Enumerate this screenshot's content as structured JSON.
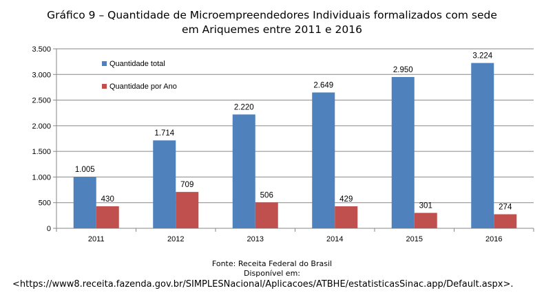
{
  "chart_data": {
    "type": "bar",
    "title_line1": "Gráfico 9 – Quantidade de Microempreendedores Individuais formalizados com sede",
    "title_line2": "em Ariquemes entre 2011 e 2016",
    "categories": [
      "2011",
      "2012",
      "2013",
      "2014",
      "2015",
      "2016"
    ],
    "series": [
      {
        "name": "Quantidade total",
        "color": "#4F81BD",
        "values": [
          1005,
          1714,
          2220,
          2649,
          2950,
          3224
        ],
        "labels": [
          "1.005",
          "1.714",
          "2.220",
          "2.649",
          "2.950",
          "3.224"
        ]
      },
      {
        "name": "Quantidade por Ano",
        "color": "#C0504D",
        "values": [
          430,
          709,
          506,
          429,
          301,
          274
        ],
        "labels": [
          "430",
          "709",
          "506",
          "429",
          "301",
          "274"
        ]
      }
    ],
    "ylim": [
      0,
      3500
    ],
    "yticks": [
      0,
      500,
      1000,
      1500,
      2000,
      2500,
      3000,
      3500
    ],
    "ytick_labels": [
      "0",
      "500",
      "1.000",
      "1.500",
      "2.000",
      "2.500",
      "3.000",
      "3.500"
    ],
    "grid": true,
    "legend_position": "top-left"
  },
  "source": {
    "line1": "Fonte: Receita Federal do Brasil",
    "line2": "Disponível em:",
    "line3": "<https://www8.receita.fazenda.gov.br/SIMPLESNacional/Aplicacoes/ATBHE/estatisticasSinac.app/Default.aspx>."
  }
}
